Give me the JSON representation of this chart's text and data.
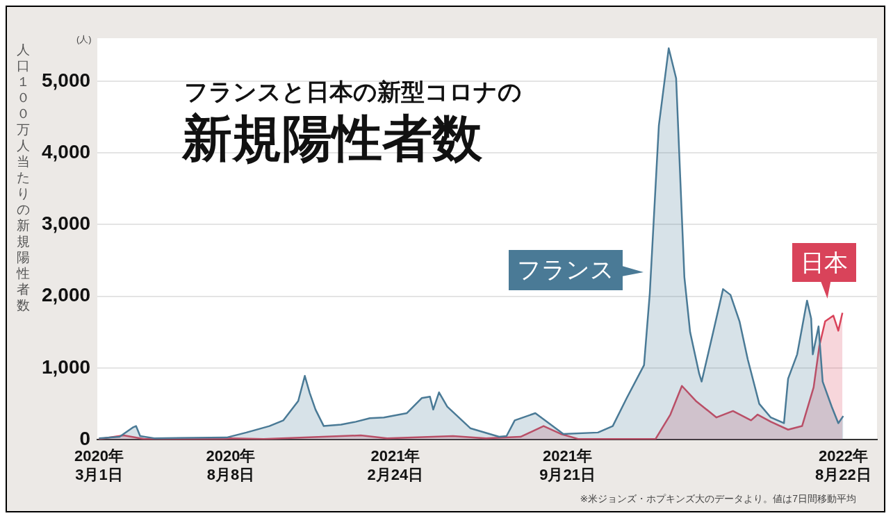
{
  "chart_data": {
    "type": "area",
    "title": "新規陽性者数",
    "subtitle": "フランスと日本の新型コロナの",
    "ylabel": "人口１００万人当たりの新規陽性者数",
    "annotations": [
      "(人)",
      "※米ジョンズ・ホプキンズ大のデータより。値は7日間移動平均"
    ],
    "xlim": [
      "2020-02-28",
      "2022-10-02"
    ],
    "xticks": [
      {
        "value": "2020-03-01",
        "label": "2020年\n3月1日"
      },
      {
        "value": "2020-08-08",
        "label": "2020年\n8月8日"
      },
      {
        "value": "2021-02-24",
        "label": "2021年\n2月24日"
      },
      {
        "value": "2021-09-21",
        "label": "2021年\n9月21日"
      },
      {
        "value": "2022-08-22",
        "label": "2022年\n8月22日"
      }
    ],
    "ylim": [
      0,
      5600
    ],
    "yticks": [
      {
        "value": 0,
        "label": "0"
      },
      {
        "value": 1000,
        "label": "1,000"
      },
      {
        "value": 2000,
        "label": "2,000"
      },
      {
        "value": 3000,
        "label": "3,000"
      },
      {
        "value": 4000,
        "label": "4,000"
      },
      {
        "value": 5000,
        "label": "5,000"
      }
    ],
    "grid": "y",
    "legend": false,
    "marker": "none",
    "line_style": "solid",
    "series": [
      {
        "name": "フランス",
        "color": "#4a7a96",
        "x": [
          "2020-03-01",
          "2020-03-26",
          "2020-04-11",
          "2020-04-15",
          "2020-04-20",
          "2020-05-07",
          "2020-08-03",
          "2020-08-27",
          "2020-09-24",
          "2020-10-11",
          "2020-10-29",
          "2020-11-06",
          "2020-11-12",
          "2020-11-19",
          "2020-11-29",
          "2020-12-20",
          "2021-01-07",
          "2021-01-24",
          "2021-02-10",
          "2021-03-10",
          "2021-03-28",
          "2021-04-07",
          "2021-04-11",
          "2021-04-18",
          "2021-04-28",
          "2021-05-26",
          "2021-06-30",
          "2021-07-09",
          "2021-07-19",
          "2021-08-13",
          "2021-09-03",
          "2021-09-16",
          "2021-10-28",
          "2021-11-15",
          "2021-12-02",
          "2021-12-23",
          "2021-12-30",
          "2022-01-10",
          "2022-01-22",
          "2022-01-31",
          "2022-02-10",
          "2022-02-17",
          "2022-02-28",
          "2022-03-03",
          "2022-03-17",
          "2022-03-29",
          "2022-04-07",
          "2022-04-18",
          "2022-04-28",
          "2022-05-12",
          "2022-05-26",
          "2022-06-11",
          "2022-06-16",
          "2022-06-27",
          "2022-07-09",
          "2022-07-14",
          "2022-07-16",
          "2022-07-23",
          "2022-07-28",
          "2022-08-08",
          "2022-08-16",
          "2022-08-22"
        ],
        "values": [
          20,
          40,
          170,
          190,
          50,
          20,
          30,
          100,
          190,
          270,
          540,
          890,
          650,
          420,
          190,
          210,
          250,
          300,
          310,
          370,
          580,
          600,
          420,
          660,
          460,
          160,
          40,
          50,
          270,
          370,
          190,
          80,
          100,
          190,
          580,
          1040,
          2040,
          4380,
          5460,
          5040,
          2270,
          1500,
          920,
          810,
          1500,
          2100,
          2020,
          1650,
          1120,
          500,
          310,
          230,
          850,
          1190,
          1940,
          1690,
          1190,
          1580,
          810,
          460,
          230,
          330
        ]
      },
      {
        "name": "日本",
        "color": "#d9435a",
        "x": [
          "2020-03-01",
          "2020-03-31",
          "2020-04-25",
          "2020-07-29",
          "2020-08-08",
          "2020-09-17",
          "2021-01-13",
          "2021-02-14",
          "2021-05-05",
          "2021-06-14",
          "2021-07-26",
          "2021-08-23",
          "2021-09-13",
          "2021-10-04",
          "2022-01-06",
          "2022-01-24",
          "2022-02-07",
          "2022-02-24",
          "2022-03-21",
          "2022-04-10",
          "2022-05-02",
          "2022-05-10",
          "2022-05-26",
          "2022-06-16",
          "2022-07-03",
          "2022-07-17",
          "2022-07-24",
          "2022-07-31",
          "2022-08-10",
          "2022-08-16",
          "2022-08-21"
        ],
        "values": [
          10,
          60,
          10,
          10,
          20,
          10,
          60,
          20,
          50,
          20,
          40,
          190,
          80,
          10,
          10,
          350,
          750,
          540,
          310,
          400,
          270,
          350,
          250,
          140,
          190,
          730,
          1310,
          1650,
          1730,
          1520,
          1770
        ]
      }
    ]
  }
}
